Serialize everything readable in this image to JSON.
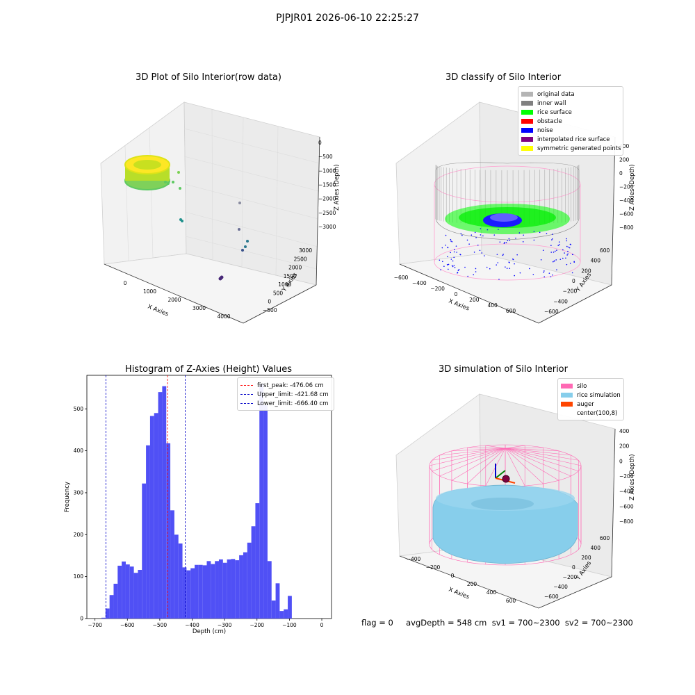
{
  "figure": {
    "suptitle": "PJPJR01 2026-06-10 22:25:27",
    "footer": "flag = 0     avgDepth = 548 cm  sv1 = 700~2300  sv2 = 700~2300"
  },
  "colors": {
    "histogram_bar": "#5050f5",
    "first_peak_line": "#ff0000",
    "limit_lines": "#0000c8",
    "grey_wall": "#888888",
    "rice_surface": "#00ff00",
    "noise": "#0000ff",
    "silo_pink": "#ff69b4",
    "rice_sim": "#87ceeb"
  },
  "chart_data": [
    {
      "type": "scatter",
      "title": "3D Plot of Silo Interior(row data)",
      "xlabel": "X Axies",
      "ylabel": "Y Axies",
      "zlabel": "Z Axies (Depth)",
      "x_ticks": [
        "0",
        "1000",
        "2000",
        "3000",
        "4000"
      ],
      "y_ticks": [
        "-500",
        "0",
        "500",
        "1000",
        "1500",
        "2000",
        "2500",
        "3000"
      ],
      "z_ticks": [
        "0",
        "-500",
        "-1000",
        "-1500",
        "-2000",
        "-2500",
        "-3000"
      ],
      "xlim": [
        -500,
        4200
      ],
      "ylim": [
        -600,
        3200
      ],
      "zlim": [
        -3300,
        100
      ]
    },
    {
      "type": "scatter",
      "title": "3D classify of Silo Interior",
      "xlabel": "X Axies",
      "ylabel": "Y Axies",
      "zlabel": "Z Axies (Depth)",
      "x_ticks": [
        "-600",
        "-400",
        "-200",
        "0",
        "200",
        "400",
        "600"
      ],
      "y_ticks": [
        "-600",
        "-400",
        "-200",
        "0",
        "200",
        "400",
        "600"
      ],
      "z_ticks": [
        "400",
        "200",
        "0",
        "-200",
        "-400",
        "-600",
        "-800"
      ],
      "legend": [
        {
          "label": "original data",
          "color": "#b4b4b4"
        },
        {
          "label": "inner wall",
          "color": "#808080"
        },
        {
          "label": "rice surface",
          "color": "#00ff00"
        },
        {
          "label": "obstacle",
          "color": "#ff0000"
        },
        {
          "label": "noise",
          "color": "#0000ff"
        },
        {
          "label": "interpolated rice surface",
          "color": "#800080"
        },
        {
          "label": "symmetric generated points",
          "color": "#ffff00"
        }
      ]
    },
    {
      "type": "bar",
      "title": "Histogram of Z-Axies (Height) Values",
      "xlabel": "Depth (cm)",
      "ylabel": "Frequency",
      "xlim": [
        -725,
        30
      ],
      "ylim": [
        0,
        580
      ],
      "x_ticks": [
        -700,
        -600,
        -500,
        -400,
        -300,
        -200,
        -100,
        0
      ],
      "y_ticks": [
        0,
        100,
        200,
        300,
        400,
        500
      ],
      "bin_start": -680,
      "bin_width": 12.5,
      "values": [
        2,
        24,
        56,
        83,
        126,
        136,
        129,
        124,
        109,
        116,
        322,
        413,
        483,
        490,
        540,
        554,
        418,
        258,
        200,
        179,
        122,
        115,
        120,
        128,
        128,
        127,
        137,
        130,
        137,
        141,
        133,
        141,
        142,
        139,
        151,
        158,
        181,
        220,
        275,
        560,
        509,
        137,
        43,
        84,
        18,
        22,
        54
      ],
      "vlines": [
        {
          "label": "first_peak: -476.06 cm",
          "x": -476.06,
          "color": "#ff0000"
        },
        {
          "label": "Upper_limit: -421.68 cm",
          "x": -421.68,
          "color": "#0000c8"
        },
        {
          "label": "Lower_limit: -666.40 cm",
          "x": -666.4,
          "color": "#0000c8"
        }
      ]
    },
    {
      "type": "area",
      "title": "3D simulation of Silo Interior",
      "xlabel": "X Axies",
      "ylabel": "Y Axies",
      "zlabel": "Z Axies (Depth)",
      "x_ticks": [
        "-400",
        "-200",
        "0",
        "200",
        "400",
        "600"
      ],
      "y_ticks": [
        "-600",
        "-400",
        "-200",
        "0",
        "200",
        "400",
        "600"
      ],
      "z_ticks": [
        "400",
        "200",
        "0",
        "-200",
        "-400",
        "-600",
        "-800"
      ],
      "legend": [
        {
          "label": "silo",
          "color": "#ff69b4"
        },
        {
          "label": "rice simulation",
          "color": "#87ceeb"
        },
        {
          "label": "auger",
          "color": "#ff4500"
        },
        {
          "label": "center(100,8)",
          "color": ""
        }
      ]
    }
  ]
}
